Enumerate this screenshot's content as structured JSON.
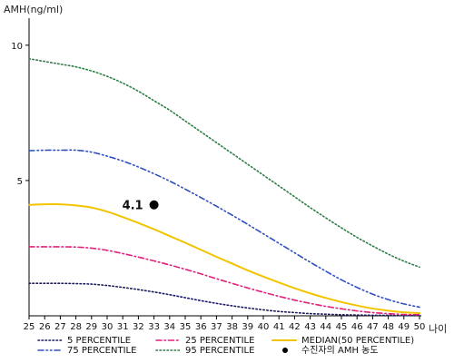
{
  "chart_data": {
    "type": "line",
    "ylabel": "AMH(ng/ml)",
    "xlabel": "나이",
    "xlim": [
      25,
      50
    ],
    "ylim": [
      0,
      11
    ],
    "yticks": [
      5,
      10
    ],
    "x": [
      25,
      26,
      27,
      28,
      29,
      30,
      31,
      32,
      33,
      34,
      35,
      36,
      37,
      38,
      39,
      40,
      41,
      42,
      43,
      44,
      45,
      46,
      47,
      48,
      49,
      50
    ],
    "series": [
      {
        "name": "5 PERCENTILE",
        "color": "#1a1a66",
        "dash": "dot",
        "values": [
          1.2,
          1.2,
          1.2,
          1.19,
          1.17,
          1.12,
          1.05,
          0.97,
          0.88,
          0.78,
          0.67,
          0.56,
          0.46,
          0.37,
          0.29,
          0.22,
          0.16,
          0.12,
          0.08,
          0.06,
          0.04,
          0.03,
          0.02,
          0.02,
          0.01,
          0.01
        ]
      },
      {
        "name": "25 PERCENTILE",
        "color": "#e0207a",
        "dash": "dashdot",
        "values": [
          2.55,
          2.55,
          2.55,
          2.54,
          2.5,
          2.42,
          2.3,
          2.17,
          2.03,
          1.88,
          1.72,
          1.55,
          1.37,
          1.2,
          1.03,
          0.87,
          0.72,
          0.58,
          0.46,
          0.35,
          0.26,
          0.18,
          0.12,
          0.08,
          0.05,
          0.04
        ]
      },
      {
        "name": "MEDIAN(50 PERCENTILE)",
        "color": "#f2c400",
        "dash": "solid",
        "values": [
          4.1,
          4.12,
          4.12,
          4.08,
          4.0,
          3.85,
          3.65,
          3.43,
          3.2,
          2.95,
          2.7,
          2.44,
          2.18,
          1.93,
          1.68,
          1.45,
          1.23,
          1.02,
          0.83,
          0.66,
          0.51,
          0.38,
          0.27,
          0.19,
          0.13,
          0.1
        ]
      },
      {
        "name": "75 PERCENTILE",
        "color": "#2e4fbf",
        "dash": "dashdotdot",
        "values": [
          6.1,
          6.12,
          6.12,
          6.12,
          6.05,
          5.9,
          5.72,
          5.5,
          5.25,
          4.98,
          4.68,
          4.37,
          4.05,
          3.72,
          3.38,
          3.03,
          2.68,
          2.33,
          1.98,
          1.65,
          1.33,
          1.05,
          0.8,
          0.6,
          0.44,
          0.32
        ]
      },
      {
        "name": "95 PERCENTILE",
        "color": "#2e7d46",
        "dash": "dot",
        "values": [
          9.5,
          9.4,
          9.3,
          9.2,
          9.05,
          8.85,
          8.6,
          8.3,
          7.95,
          7.6,
          7.2,
          6.8,
          6.4,
          6.0,
          5.6,
          5.2,
          4.8,
          4.4,
          4.0,
          3.62,
          3.25,
          2.9,
          2.58,
          2.28,
          2.02,
          1.8
        ]
      }
    ],
    "points": [
      {
        "name": "수진자의 AMH 농도",
        "x": 33,
        "y": 4.1,
        "label": "4.1",
        "color": "#000000"
      }
    ],
    "legend": {
      "placement": "bottom",
      "items": [
        {
          "label": "5 PERCENTILE",
          "color": "#1a1a66",
          "dash": "dot"
        },
        {
          "label": "25 PERCENTILE",
          "color": "#e0207a",
          "dash": "dashdot"
        },
        {
          "label": "MEDIAN(50 PERCENTILE)",
          "color": "#f2c400",
          "dash": "solid"
        },
        {
          "label": "75 PERCENTILE",
          "color": "#2e4fbf",
          "dash": "dashdotdot"
        },
        {
          "label": "95 PERCENTILE",
          "color": "#2e7d46",
          "dash": "dot"
        },
        {
          "label": "수진자의 AMH 농도",
          "color": "#000000",
          "marker": "circle"
        }
      ]
    },
    "grid": false
  }
}
